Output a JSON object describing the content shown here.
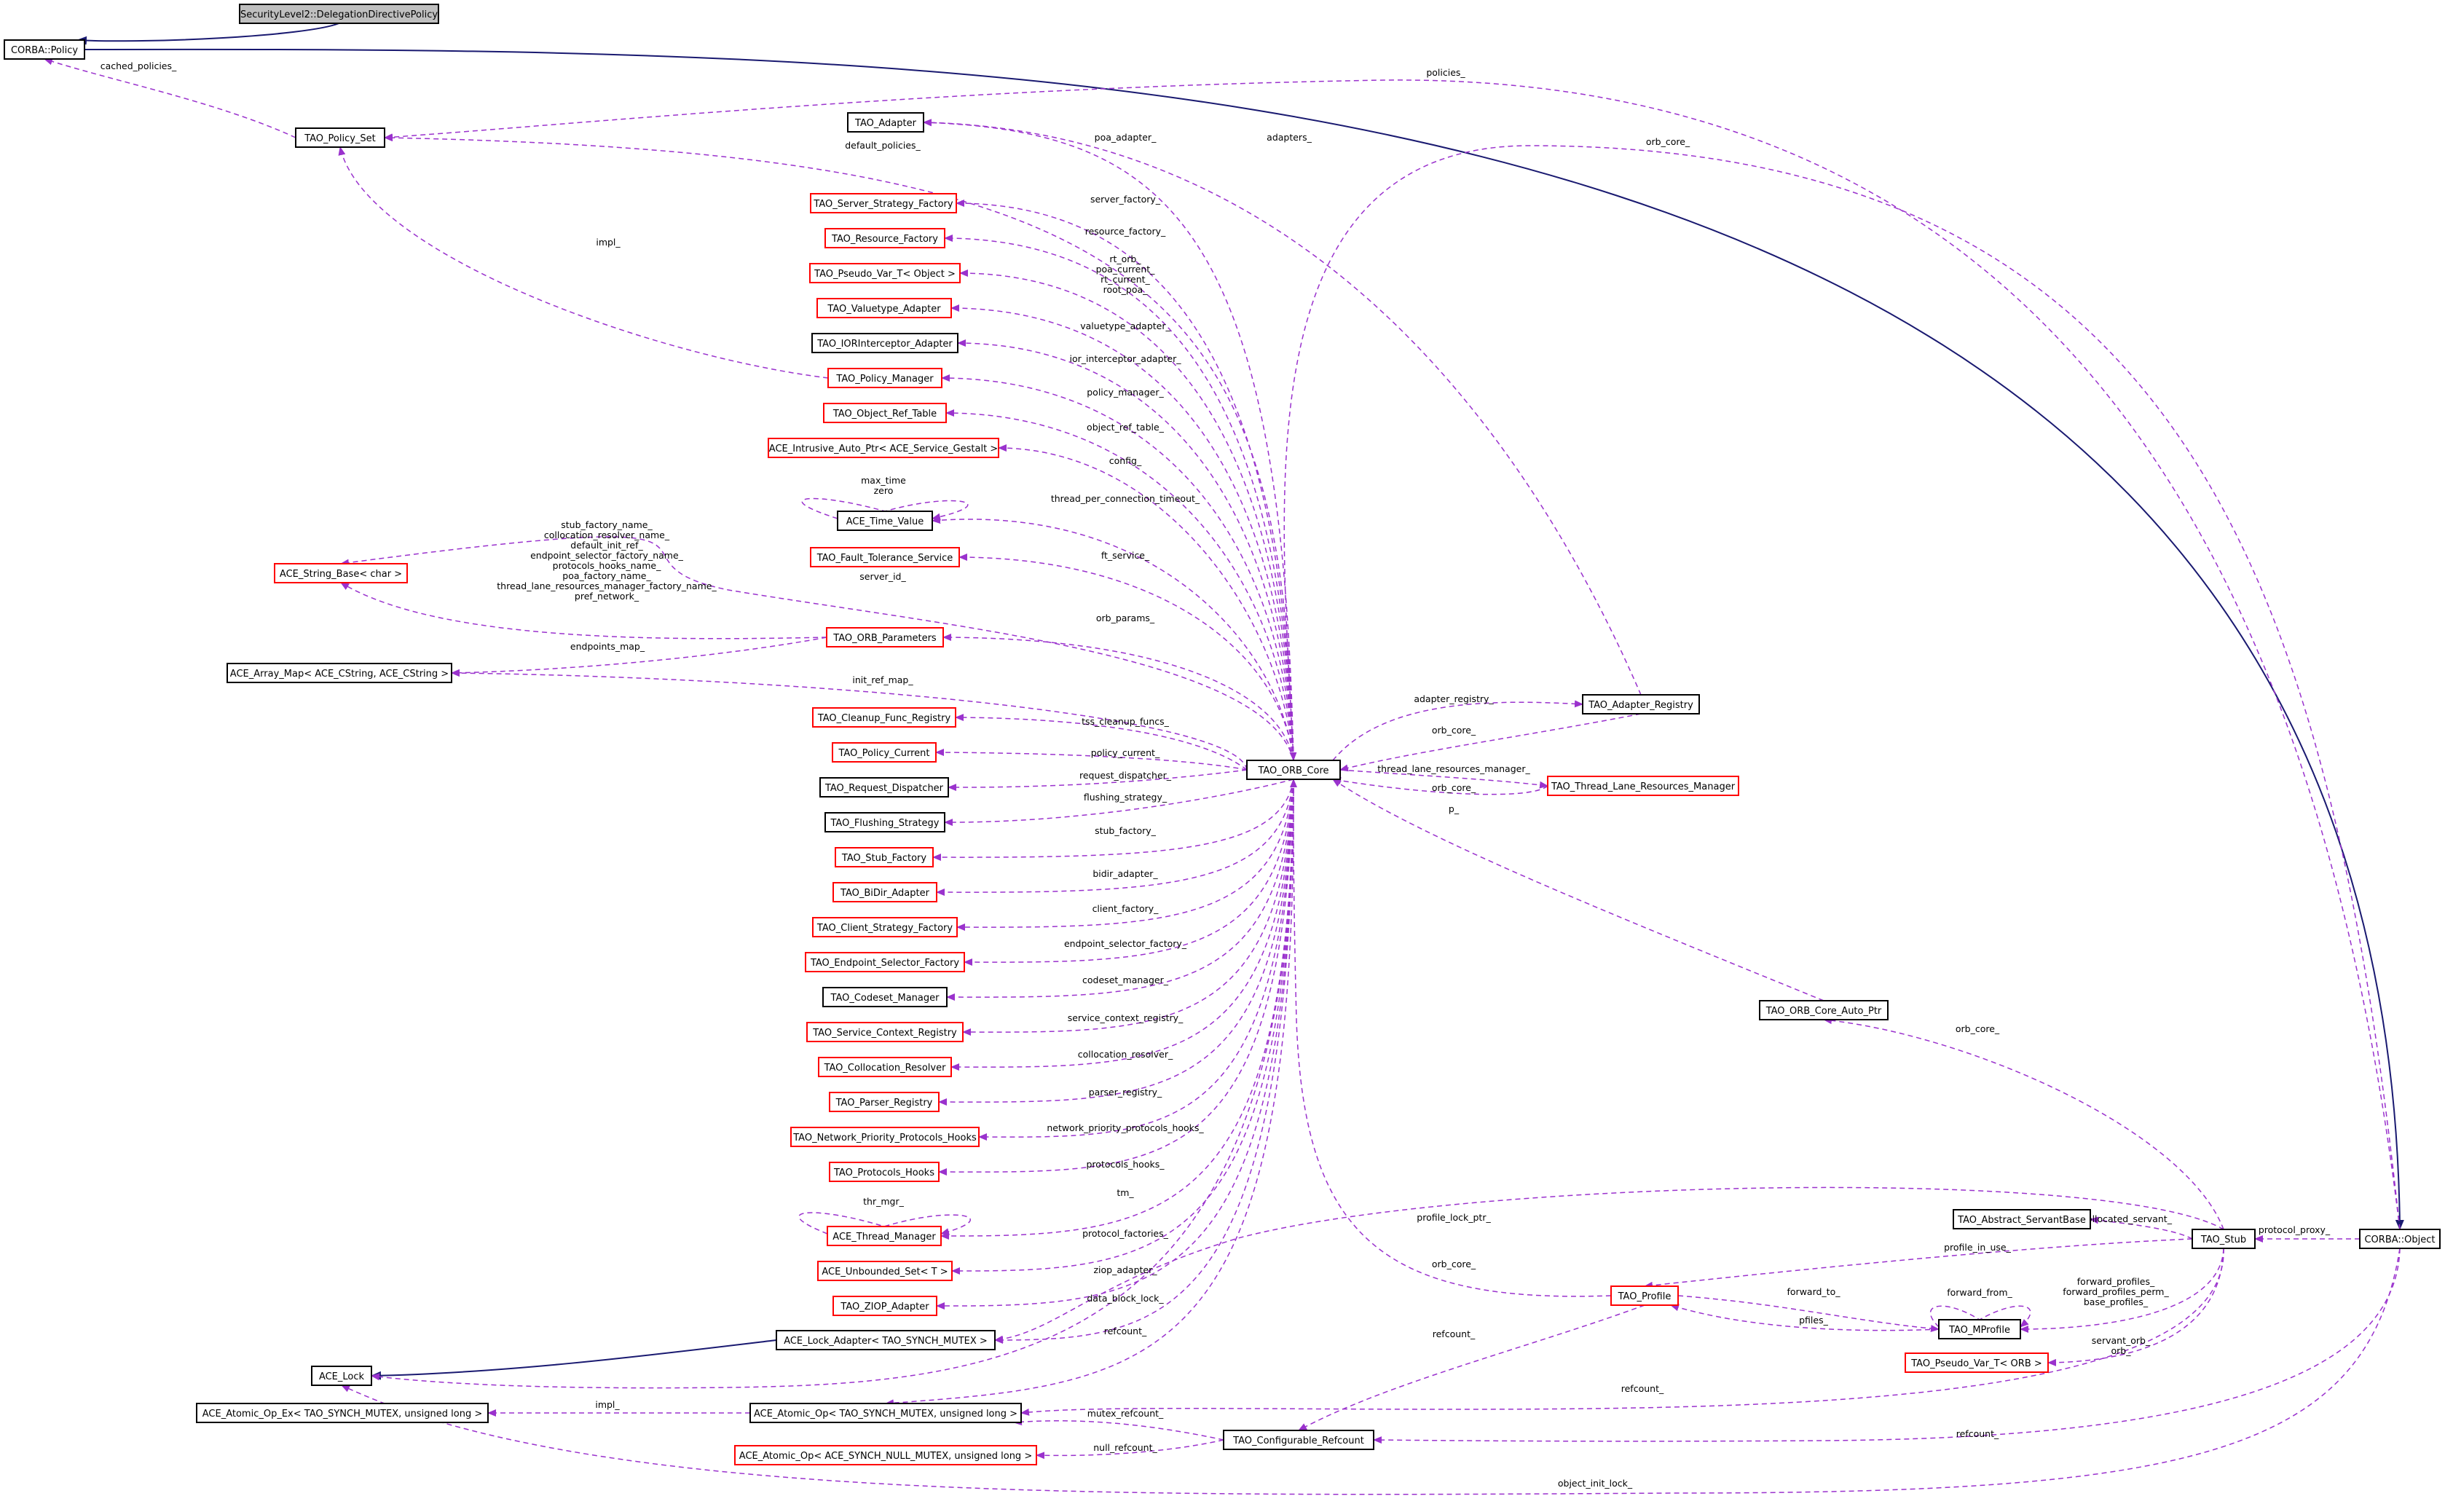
{
  "nodes": {
    "delegation": {
      "label": "SecurityLevel2::DelegationDirectivePolicy",
      "style": "grey"
    },
    "corba_policy": {
      "label": "CORBA::Policy",
      "style": "black"
    },
    "policy_set": {
      "label": "TAO_Policy_Set",
      "style": "black"
    },
    "adapter": {
      "label": "TAO_Adapter",
      "style": "black"
    },
    "server_strategy": {
      "label": "TAO_Server_Strategy_Factory",
      "style": "red"
    },
    "resource_factory": {
      "label": "TAO_Resource_Factory",
      "style": "red"
    },
    "pseudo_object": {
      "label": "TAO_Pseudo_Var_T< Object >",
      "style": "red"
    },
    "valuetype": {
      "label": "TAO_Valuetype_Adapter",
      "style": "red"
    },
    "ior_interceptor": {
      "label": "TAO_IORInterceptor_Adapter",
      "style": "black"
    },
    "policy_manager": {
      "label": "TAO_Policy_Manager",
      "style": "red"
    },
    "object_ref_table": {
      "label": "TAO_Object_Ref_Table",
      "style": "red"
    },
    "intrusive_ptr": {
      "label": "ACE_Intrusive_Auto_Ptr< ACE_Service_Gestalt >",
      "style": "red"
    },
    "time_value": {
      "label": "ACE_Time_Value",
      "style": "black"
    },
    "fault_tolerance": {
      "label": "TAO_Fault_Tolerance_Service",
      "style": "red"
    },
    "string_base": {
      "label": "ACE_String_Base< char >",
      "style": "red"
    },
    "orb_parameters": {
      "label": "TAO_ORB_Parameters",
      "style": "red"
    },
    "array_map": {
      "label": "ACE_Array_Map< ACE_CString, ACE_CString >",
      "style": "black"
    },
    "cleanup_registry": {
      "label": "TAO_Cleanup_Func_Registry",
      "style": "red"
    },
    "policy_current": {
      "label": "TAO_Policy_Current",
      "style": "red"
    },
    "request_dispatcher": {
      "label": "TAO_Request_Dispatcher",
      "style": "black"
    },
    "flushing_strategy": {
      "label": "TAO_Flushing_Strategy",
      "style": "black"
    },
    "stub_factory": {
      "label": "TAO_Stub_Factory",
      "style": "red"
    },
    "bidir_adapter": {
      "label": "TAO_BiDir_Adapter",
      "style": "red"
    },
    "client_strategy": {
      "label": "TAO_Client_Strategy_Factory",
      "style": "red"
    },
    "endpoint_selector": {
      "label": "TAO_Endpoint_Selector_Factory",
      "style": "red"
    },
    "codeset_manager": {
      "label": "TAO_Codeset_Manager",
      "style": "black"
    },
    "service_context": {
      "label": "TAO_Service_Context_Registry",
      "style": "red"
    },
    "collocation_resolver": {
      "label": "TAO_Collocation_Resolver",
      "style": "red"
    },
    "parser_registry": {
      "label": "TAO_Parser_Registry",
      "style": "red"
    },
    "network_priority": {
      "label": "TAO_Network_Priority_Protocols_Hooks",
      "style": "red"
    },
    "protocols_hooks": {
      "label": "TAO_Protocols_Hooks",
      "style": "red"
    },
    "thread_manager": {
      "label": "ACE_Thread_Manager",
      "style": "red"
    },
    "unbounded_set": {
      "label": "ACE_Unbounded_Set< T >",
      "style": "red"
    },
    "ziop_adapter": {
      "label": "TAO_ZIOP_Adapter",
      "style": "red"
    },
    "lock_adapter": {
      "label": "ACE_Lock_Adapter< TAO_SYNCH_MUTEX >",
      "style": "black"
    },
    "ace_lock": {
      "label": "ACE_Lock",
      "style": "black"
    },
    "atomic_op_ex": {
      "label": "ACE_Atomic_Op_Ex< TAO_SYNCH_MUTEX, unsigned long >",
      "style": "black"
    },
    "atomic_op": {
      "label": "ACE_Atomic_Op< TAO_SYNCH_MUTEX, unsigned long >",
      "style": "black"
    },
    "atomic_op_null": {
      "label": "ACE_Atomic_Op< ACE_SYNCH_NULL_MUTEX, unsigned long >",
      "style": "red"
    },
    "orb_core": {
      "label": "TAO_ORB_Core",
      "style": "black"
    },
    "adapter_registry": {
      "label": "TAO_Adapter_Registry",
      "style": "black"
    },
    "thread_lane": {
      "label": "TAO_Thread_Lane_Resources_Manager",
      "style": "red"
    },
    "orb_core_auto_ptr": {
      "label": "TAO_ORB_Core_Auto_Ptr",
      "style": "black"
    },
    "abstract_servant": {
      "label": "TAO_Abstract_ServantBase",
      "style": "black"
    },
    "stub": {
      "label": "TAO_Stub",
      "style": "black"
    },
    "corba_object": {
      "label": "CORBA::Object",
      "style": "black"
    },
    "profile": {
      "label": "TAO_Profile",
      "style": "red"
    },
    "mprofile": {
      "label": "TAO_MProfile",
      "style": "black"
    },
    "pseudo_orb": {
      "label": "TAO_Pseudo_Var_T< ORB >",
      "style": "red"
    },
    "configurable_refcount": {
      "label": "TAO_Configurable_Refcount",
      "style": "black"
    }
  },
  "edges": [
    {
      "from": "delegation",
      "to": "corba_policy",
      "kind": "inherit"
    },
    {
      "from": "corba_policy",
      "to": "corba_object",
      "kind": "inherit"
    },
    {
      "from": "policy_set",
      "to": "corba_policy",
      "label": "cached_policies_"
    },
    {
      "from": "corba_object",
      "to": "policy_set",
      "label": "policies_"
    },
    {
      "from": "orb_core",
      "to": "policy_set",
      "label": "default_policies_"
    },
    {
      "from": "policy_manager",
      "to": "policy_set",
      "label": "impl_"
    },
    {
      "from": "orb_core",
      "to": "adapter",
      "label": "poa_adapter_"
    },
    {
      "from": "adapter_registry",
      "to": "adapter",
      "label": "adapters_"
    },
    {
      "from": "corba_object",
      "to": "orb_core",
      "label": "orb_core_"
    },
    {
      "from": "orb_core",
      "to": "server_strategy",
      "label": "server_factory_"
    },
    {
      "from": "orb_core",
      "to": "resource_factory",
      "label": "resource_factory_"
    },
    {
      "from": "orb_core",
      "to": "pseudo_object",
      "label": "rt_orb_\npoa_current_\nrt_current_\nroot_poa_"
    },
    {
      "from": "orb_core",
      "to": "valuetype",
      "label": "valuetype_adapter_"
    },
    {
      "from": "orb_core",
      "to": "ior_interceptor",
      "label": "ior_interceptor_adapter_"
    },
    {
      "from": "orb_core",
      "to": "policy_manager",
      "label": "policy_manager_"
    },
    {
      "from": "orb_core",
      "to": "object_ref_table",
      "label": "object_ref_table_"
    },
    {
      "from": "orb_core",
      "to": "intrusive_ptr",
      "label": "config_"
    },
    {
      "from": "time_value",
      "to": "time_value",
      "label": "max_time\nzero"
    },
    {
      "from": "orb_core",
      "to": "time_value",
      "label": "thread_per_connection_timeout_"
    },
    {
      "from": "orb_core",
      "to": "fault_tolerance",
      "label": "ft_service_"
    },
    {
      "from": "orb_core",
      "to": "string_base",
      "label": "server_id_"
    },
    {
      "from": "orb_parameters",
      "to": "string_base",
      "label": "stub_factory_name_\ncollocation_resolver_name_\ndefault_init_ref_\nendpoint_selector_factory_name_\nprotocols_hooks_name_\npoa_factory_name_\nthread_lane_resources_manager_factory_name_\npref_network_"
    },
    {
      "from": "orb_core",
      "to": "orb_parameters",
      "label": "orb_params_"
    },
    {
      "from": "orb_parameters",
      "to": "array_map",
      "label": "endpoints_map_"
    },
    {
      "from": "orb_core",
      "to": "array_map",
      "label": "init_ref_map_"
    },
    {
      "from": "orb_core",
      "to": "cleanup_registry",
      "label": "tss_cleanup_funcs_"
    },
    {
      "from": "orb_core",
      "to": "policy_current",
      "label": "policy_current_"
    },
    {
      "from": "orb_core",
      "to": "request_dispatcher",
      "label": "request_dispatcher_"
    },
    {
      "from": "orb_core",
      "to": "flushing_strategy",
      "label": "flushing_strategy_"
    },
    {
      "from": "orb_core",
      "to": "stub_factory",
      "label": "stub_factory_"
    },
    {
      "from": "orb_core",
      "to": "bidir_adapter",
      "label": "bidir_adapter_"
    },
    {
      "from": "orb_core",
      "to": "client_strategy",
      "label": "client_factory_"
    },
    {
      "from": "orb_core",
      "to": "endpoint_selector",
      "label": "endpoint_selector_factory_"
    },
    {
      "from": "orb_core",
      "to": "codeset_manager",
      "label": "codeset_manager_"
    },
    {
      "from": "orb_core",
      "to": "service_context",
      "label": "service_context_registry_"
    },
    {
      "from": "orb_core",
      "to": "collocation_resolver",
      "label": "collocation_resolver_"
    },
    {
      "from": "orb_core",
      "to": "parser_registry",
      "label": "parser_registry_"
    },
    {
      "from": "orb_core",
      "to": "network_priority",
      "label": "network_priority_protocols_hooks_"
    },
    {
      "from": "orb_core",
      "to": "protocols_hooks",
      "label": "protocols_hooks_"
    },
    {
      "from": "thread_manager",
      "to": "thread_manager",
      "label": "thr_mgr_"
    },
    {
      "from": "orb_core",
      "to": "thread_manager",
      "label": "tm_"
    },
    {
      "from": "orb_core",
      "to": "unbounded_set",
      "label": "protocol_factories_"
    },
    {
      "from": "orb_core",
      "to": "ziop_adapter",
      "label": "ziop_adapter_"
    },
    {
      "from": "orb_core",
      "to": "lock_adapter",
      "label": "data_block_lock_"
    },
    {
      "from": "lock_adapter",
      "to": "ace_lock",
      "kind": "inherit"
    },
    {
      "from": "orb_core",
      "to": "ace_lock",
      "label": ""
    },
    {
      "from": "corba_object",
      "to": "ace_lock",
      "label": "object_init_lock_"
    },
    {
      "from": "orb_core",
      "to": "atomic_op",
      "label": "refcount_"
    },
    {
      "from": "atomic_op",
      "to": "atomic_op_ex",
      "label": "impl_"
    },
    {
      "from": "configurable_refcount",
      "to": "atomic_op",
      "label": "mutex_refcount_"
    },
    {
      "from": "configurable_refcount",
      "to": "atomic_op_null",
      "label": "null_refcount_"
    },
    {
      "from": "adapter_registry",
      "to": "orb_core",
      "label": "orb_core_"
    },
    {
      "from": "orb_core",
      "to": "adapter_registry",
      "label": "adapter_registry_"
    },
    {
      "from": "orb_core",
      "to": "thread_lane",
      "label": "thread_lane_resources_manager_"
    },
    {
      "from": "thread_lane",
      "to": "orb_core",
      "label": "orb_core_"
    },
    {
      "from": "orb_core_auto_ptr",
      "to": "orb_core",
      "label": "p_"
    },
    {
      "from": "stub",
      "to": "orb_core_auto_ptr",
      "label": "orb_core_"
    },
    {
      "from": "stub",
      "to": "abstract_servant",
      "label": "collocated_servant_"
    },
    {
      "from": "corba_object",
      "to": "stub",
      "label": "protocol_proxy_"
    },
    {
      "from": "stub",
      "to": "profile",
      "label": "profile_in_use_"
    },
    {
      "from": "stub",
      "to": "mprofile",
      "label": "forward_profiles_\nforward_profiles_perm_\nbase_profiles_"
    },
    {
      "from": "stub",
      "to": "pseudo_orb",
      "label": "servant_orb_\norb_"
    },
    {
      "from": "stub",
      "to": "atomic_op",
      "label": "refcount_"
    },
    {
      "from": "stub",
      "to": "lock_adapter",
      "label": "profile_lock_ptr_"
    },
    {
      "from": "profile",
      "to": "mprofile",
      "label": "forward_to_"
    },
    {
      "from": "mprofile",
      "to": "profile",
      "label": "pfiles_"
    },
    {
      "from": "mprofile",
      "to": "mprofile",
      "label": "forward_from_"
    },
    {
      "from": "profile",
      "to": "orb_core",
      "label": "orb_core_"
    },
    {
      "from": "profile",
      "to": "configurable_refcount",
      "label": "refcount_"
    },
    {
      "from": "corba_object",
      "to": "configurable_refcount",
      "label": "refcount_"
    }
  ]
}
